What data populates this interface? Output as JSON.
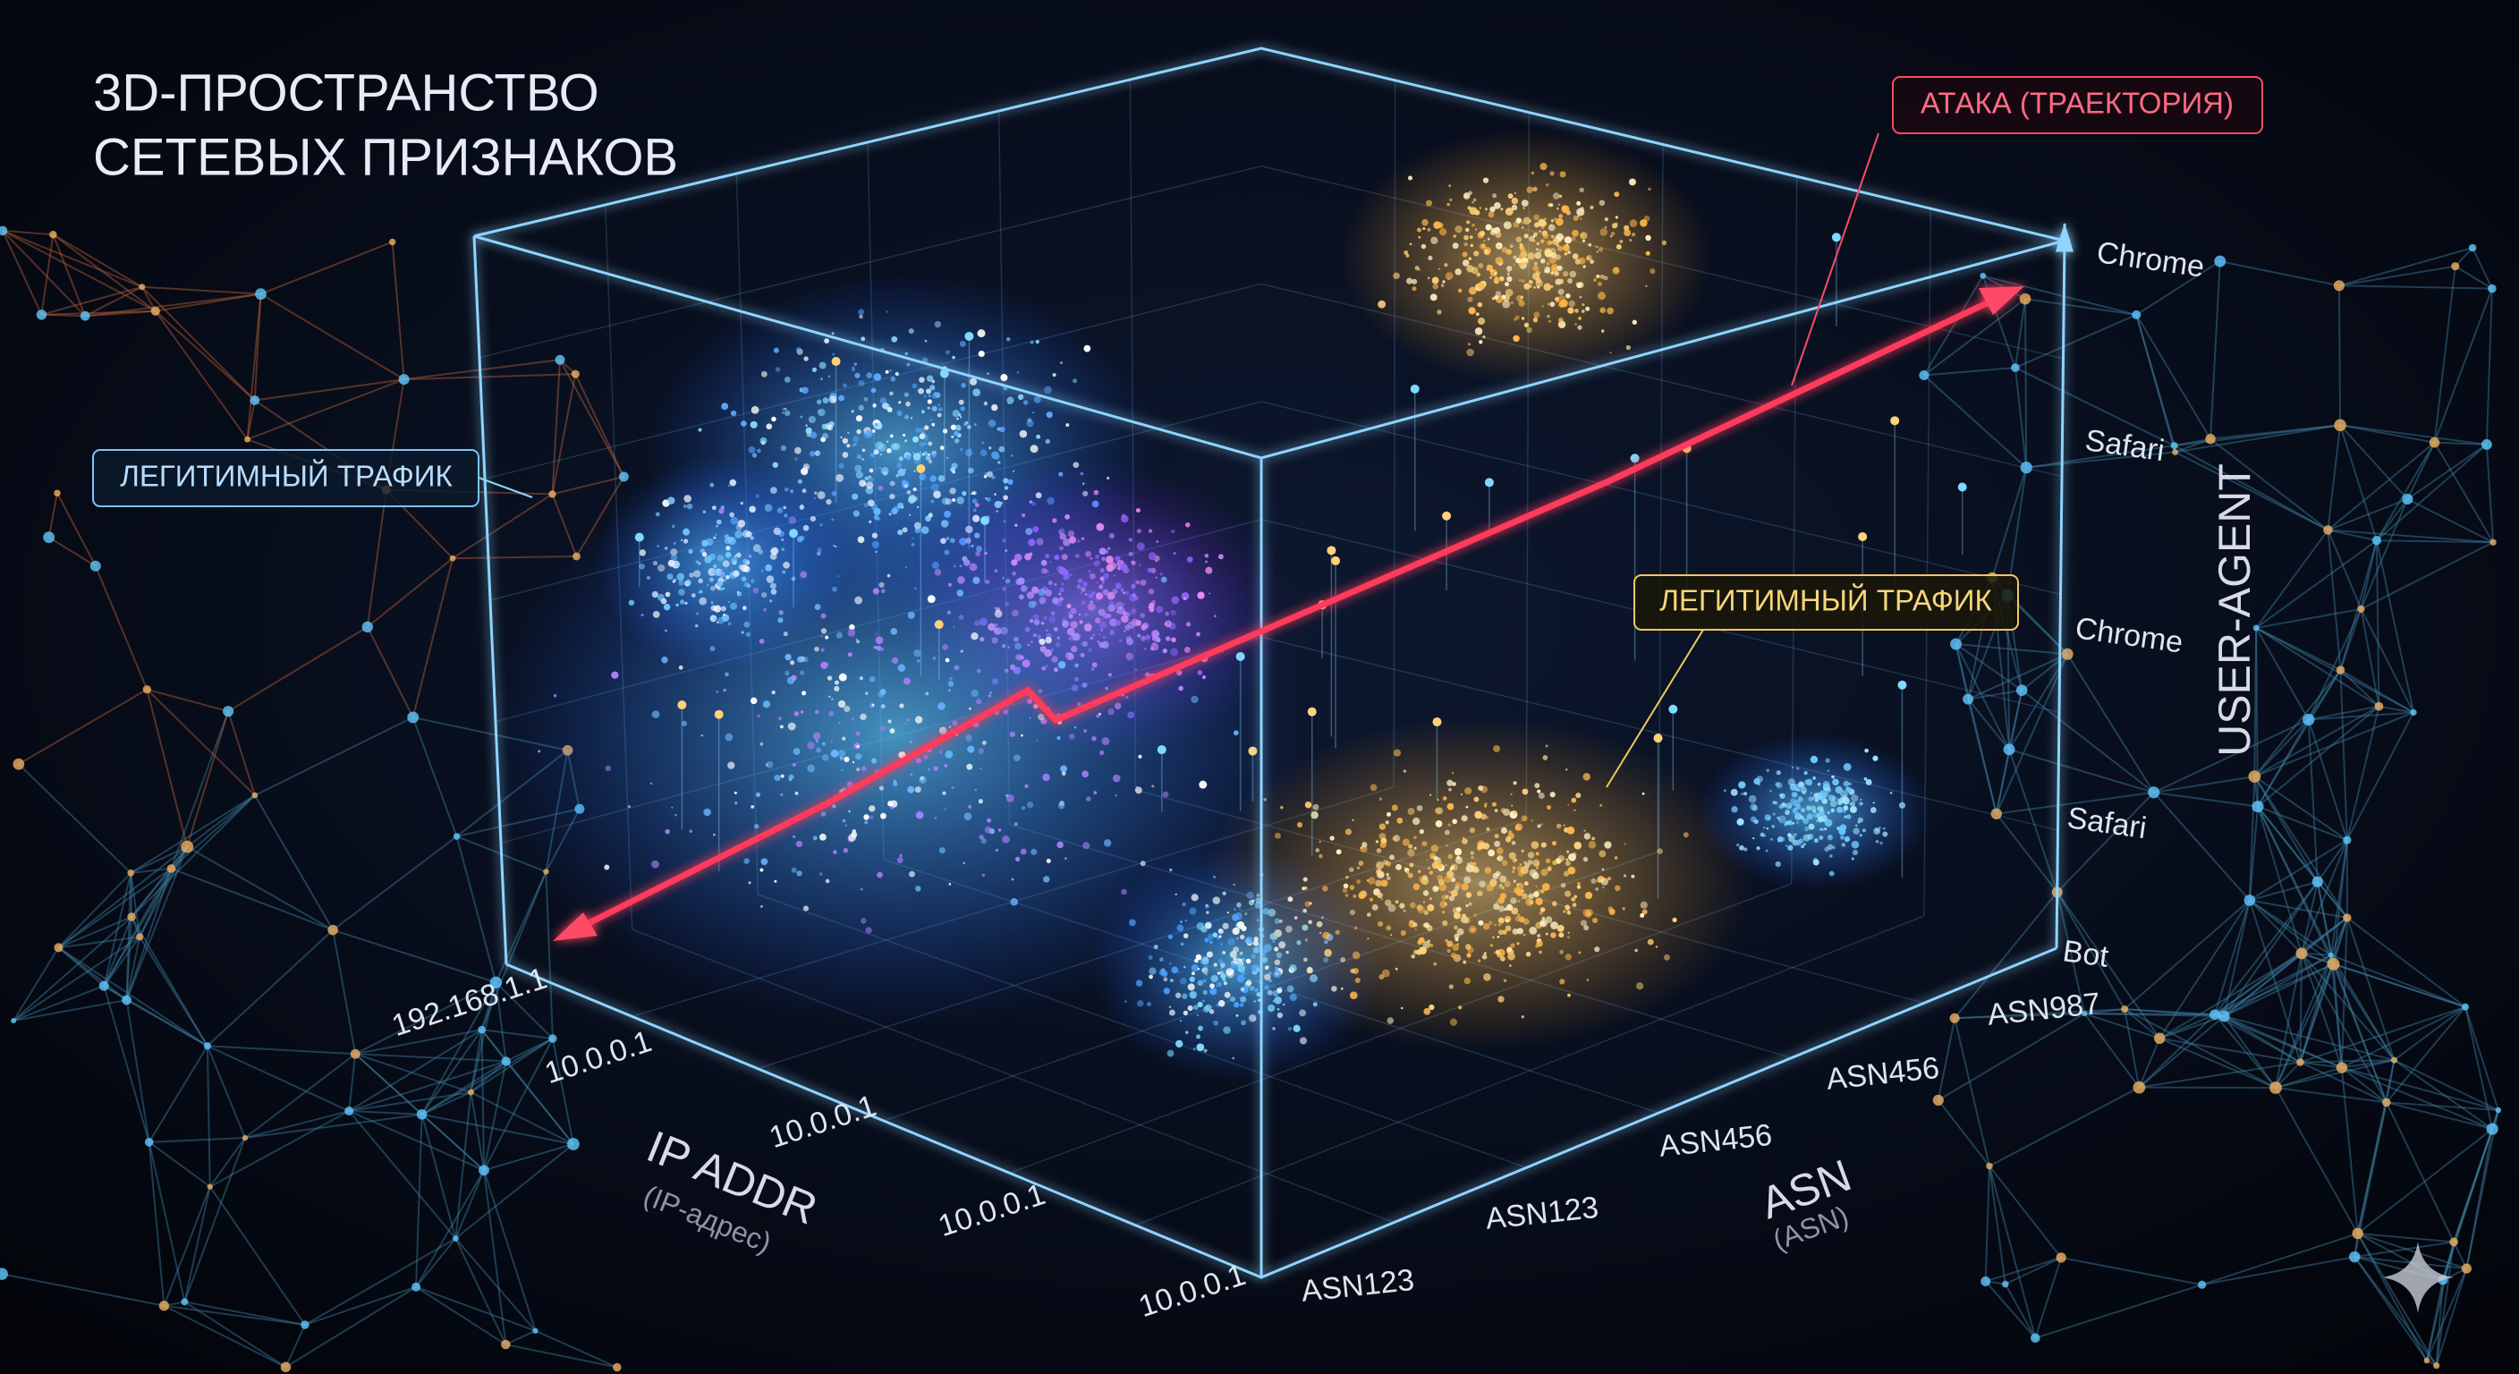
{
  "title": [
    "3D-ПРОСТРАНСТВО",
    "СЕТЕВЫХ ПРИЗНАКОВ"
  ],
  "labels": {
    "legit_left": "ЛЕГИТИМНЫЙ ТРАФИК",
    "attack": "АТАКА (ТРАЕКТОРИЯ)",
    "legit_right": "ЛЕГИТИМНЫЙ ТРАФИК"
  },
  "axes": {
    "user_agent": {
      "title": "USER-AGENT",
      "ticks": [
        "Chrome",
        "Safari",
        "Chrome",
        "Safari",
        "Bot"
      ]
    },
    "asn": {
      "title": "ASN",
      "subtitle": "(ASN)",
      "ticks": [
        "ASN987",
        "ASN456",
        "ASN456",
        "ASN123",
        "ASN123"
      ]
    },
    "ip": {
      "title": "IP ADDR",
      "subtitle": "(IP-адрес)",
      "ticks": [
        "192.168.1.1",
        "10.0.0.1",
        "10.0.0.1",
        "10.0.0.1",
        "10.0.0.1"
      ]
    }
  }
}
